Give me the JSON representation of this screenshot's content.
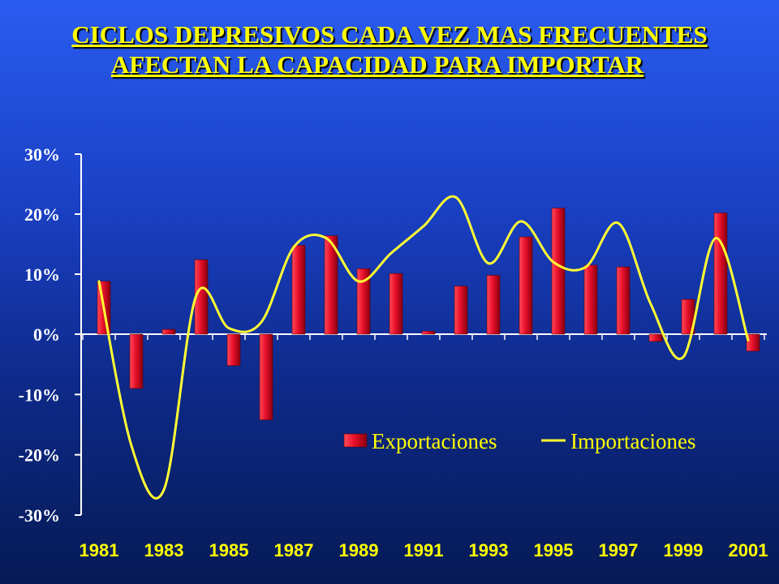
{
  "title": {
    "line1": "CICLOS  DEPRESIVOS CADA VEZ MAS FRECUENTES",
    "line2": "AFECTAN LA CAPACIDAD  PARA IMPORTAR"
  },
  "colors": {
    "bars": "#e8102a",
    "line": "#ffff33",
    "text_title": "#ffff00",
    "text_axis": "#ffffff"
  },
  "chart_data": {
    "type": "bar",
    "title": "CICLOS  DEPRESIVOS CADA VEZ MAS FRECUENTES AFECTAN LA CAPACIDAD  PARA IMPORTAR",
    "x": [
      1981,
      1982,
      1983,
      1984,
      1985,
      1986,
      1987,
      1988,
      1989,
      1990,
      1991,
      1992,
      1993,
      1994,
      1995,
      1996,
      1997,
      1998,
      1999,
      2000,
      2001
    ],
    "x_tick_labels": [
      "1981",
      "1983",
      "1985",
      "1987",
      "1989",
      "1991",
      "1993",
      "1995",
      "1997",
      "1999",
      "2001"
    ],
    "y_tick_labels": [
      "30%",
      "20%",
      "10%",
      "0%",
      "-10%",
      "-20%",
      "-30%"
    ],
    "y_ticks": [
      30,
      20,
      10,
      0,
      -10,
      -20,
      -30
    ],
    "ylim": [
      -30,
      30
    ],
    "series": [
      {
        "name": "Exportaciones",
        "type": "bar",
        "values": [
          8.8,
          -9.0,
          0.8,
          12.4,
          -5.2,
          -14.2,
          14.8,
          16.4,
          10.9,
          10.1,
          0.5,
          8.0,
          9.8,
          16.2,
          21.0,
          11.5,
          11.2,
          -1.2,
          5.8,
          20.2,
          -2.8
        ]
      },
      {
        "name": "Importaciones",
        "type": "line",
        "values": [
          8.8,
          -18.5,
          -25.8,
          6.5,
          1.0,
          2.0,
          14.5,
          16.0,
          8.8,
          13.5,
          18.0,
          22.8,
          11.8,
          18.8,
          12.0,
          11.2,
          18.5,
          5.0,
          -3.8,
          16.0,
          -1.0
        ]
      }
    ],
    "legend": {
      "placement": "bottom-right",
      "entries": [
        "Exportaciones",
        "Importaciones"
      ]
    },
    "grid": false,
    "ylabel": "",
    "xlabel": ""
  }
}
